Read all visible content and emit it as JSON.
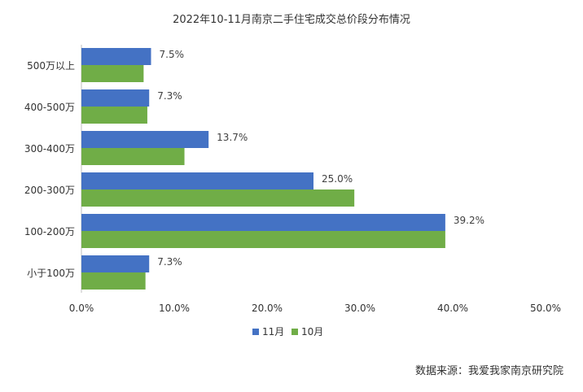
{
  "chart_data": {
    "type": "bar",
    "orientation": "horizontal",
    "title": "2022年10-11月南京二手住宅成交总价段分布情况",
    "categories": [
      "500万以上",
      "400-500万",
      "300-400万",
      "200-300万",
      "100-200万",
      "小于100万"
    ],
    "series": [
      {
        "name": "11月",
        "color": "#4472C4",
        "values": [
          7.5,
          7.3,
          13.7,
          25.0,
          39.2,
          7.3
        ],
        "labels": [
          "7.5%",
          "7.3%",
          "13.7%",
          "25.0%",
          "39.2%",
          "7.3%"
        ]
      },
      {
        "name": "10月",
        "color": "#70AD47",
        "values": [
          6.7,
          7.1,
          11.1,
          29.4,
          39.2,
          6.9
        ]
      }
    ],
    "xlim": [
      0,
      50
    ],
    "xticks": [
      "0.0%",
      "10.0%",
      "20.0%",
      "30.0%",
      "40.0%",
      "50.0%"
    ],
    "legend_position": "bottom",
    "grid": false
  },
  "source": "数据来源：我爱我家南京研究院"
}
